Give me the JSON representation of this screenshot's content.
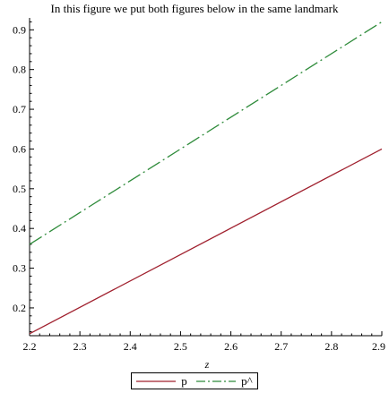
{
  "chart_data": {
    "type": "line",
    "title": "In this figure we put both figures below in the same landmark",
    "xlabel": "z",
    "ylabel": "",
    "xlim": [
      2.2,
      2.9
    ],
    "ylim": [
      0.13,
      0.93
    ],
    "xticks": [
      "2.2",
      "2.3",
      "2.4",
      "2.5",
      "2.6",
      "2.7",
      "2.8",
      "2.9"
    ],
    "yticks": [
      "0.2",
      "0.3",
      "0.4",
      "0.5",
      "0.6",
      "0.7",
      "0.8",
      "0.9"
    ],
    "grid": false,
    "legend_position": "bottom-center",
    "series": [
      {
        "name": "p",
        "color": "#a0202e",
        "style": "solid",
        "x": [
          2.2,
          2.9
        ],
        "y": [
          0.135,
          0.6
        ]
      },
      {
        "name": "p^",
        "color": "#2e8b3a",
        "style": "dashdot",
        "x": [
          2.2,
          2.9
        ],
        "y": [
          0.36,
          0.92
        ]
      }
    ]
  }
}
